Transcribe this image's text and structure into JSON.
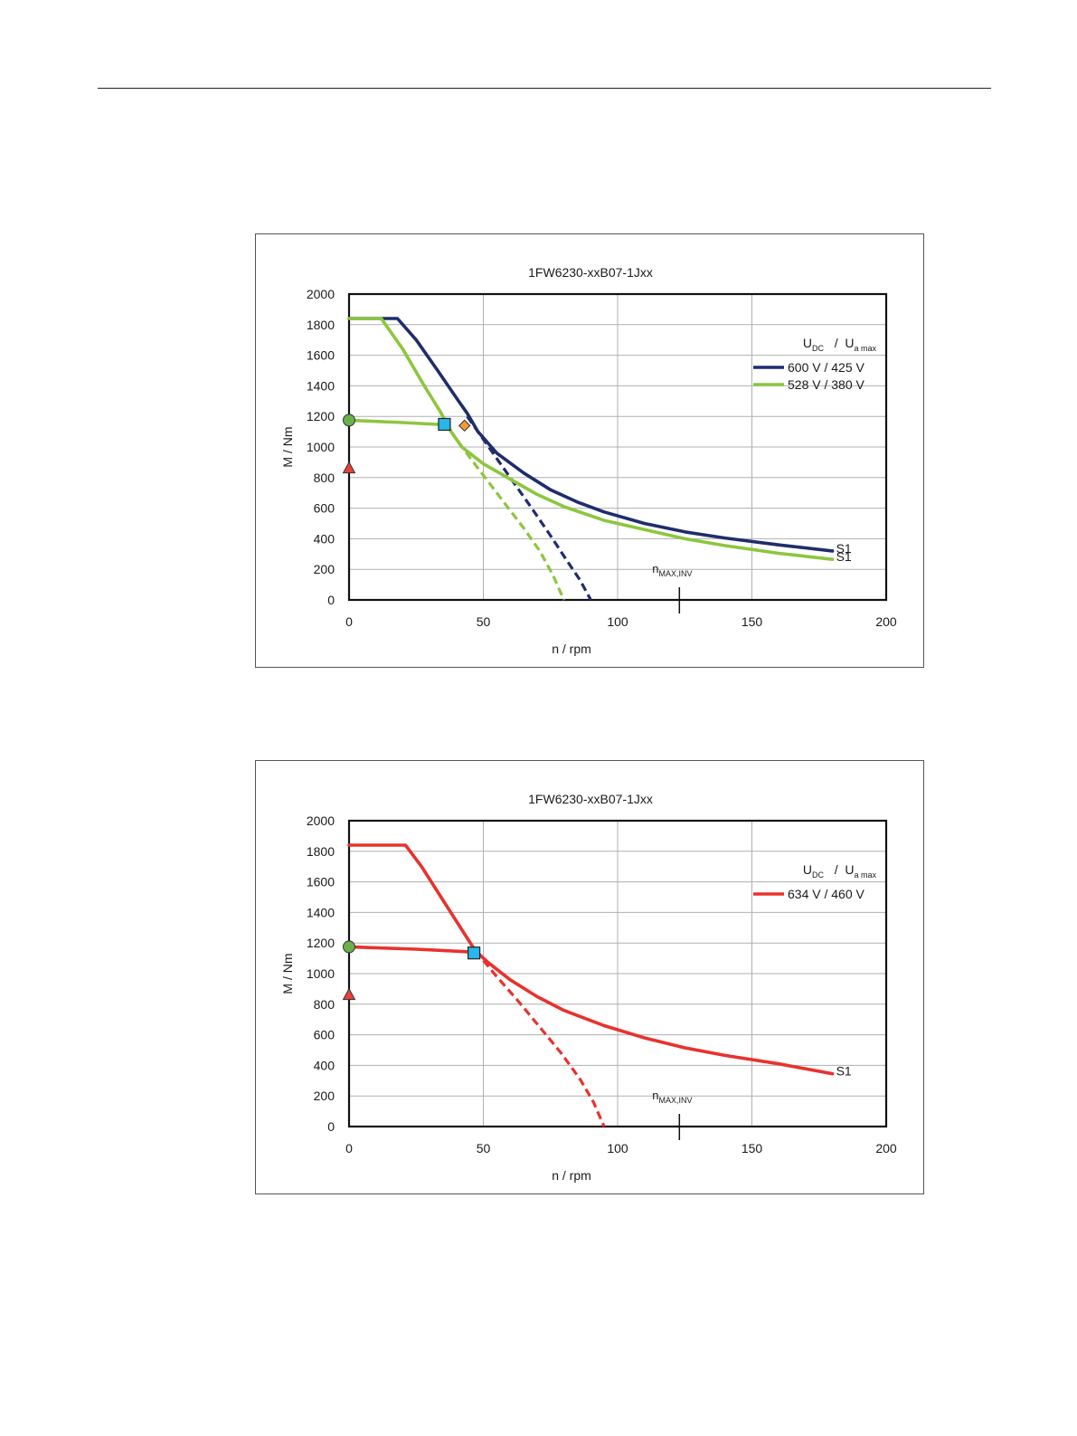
{
  "chart_data": [
    {
      "type": "line",
      "title": "1FW6230-xxB07-1Jxx",
      "xlabel": "n / rpm",
      "ylabel": "M / Nm",
      "xlim": [
        0,
        200
      ],
      "ylim": [
        0,
        2000
      ],
      "x_ticks": [
        0,
        50,
        100,
        150,
        200
      ],
      "y_ticks": [
        0,
        200,
        400,
        600,
        800,
        1000,
        1200,
        1400,
        1600,
        1800,
        2000
      ],
      "grid": true,
      "legend_title": {
        "main": "U",
        "sub1": "DC",
        "sep": " / U",
        "sub2": "a max"
      },
      "legend_position": "top-right",
      "annotation": {
        "text": "n",
        "sub": "MAX,INV",
        "x": 123
      },
      "series": [
        {
          "name": "600 V / 425 V",
          "color": "#1f2d6b",
          "end_label": "S1",
          "solid": [
            [
              0,
              1840
            ],
            [
              18,
              1840
            ],
            [
              25,
              1700
            ],
            [
              33,
              1500
            ],
            [
              40,
              1320
            ],
            [
              44,
              1220
            ],
            [
              48,
              1100
            ],
            [
              55,
              960
            ],
            [
              65,
              830
            ],
            [
              75,
              720
            ],
            [
              85,
              640
            ],
            [
              95,
              575
            ],
            [
              110,
              500
            ],
            [
              125,
              445
            ],
            [
              140,
              405
            ],
            [
              160,
              360
            ],
            [
              180,
              320
            ]
          ],
          "dashed": [
            [
              44,
              1200
            ],
            [
              52,
              1000
            ],
            [
              60,
              800
            ],
            [
              68,
              600
            ],
            [
              75,
              420
            ],
            [
              81,
              260
            ],
            [
              86,
              130
            ],
            [
              90,
              0
            ]
          ]
        },
        {
          "name": "528 V / 380 V",
          "color": "#8cc63f",
          "end_label": "S1",
          "solid": [
            [
              0,
              1840
            ],
            [
              12,
              1840
            ],
            [
              20,
              1640
            ],
            [
              28,
              1400
            ],
            [
              34,
              1230
            ],
            [
              38,
              1100
            ],
            [
              42,
              1000
            ],
            [
              50,
              890
            ],
            [
              60,
              790
            ],
            [
              70,
              690
            ],
            [
              80,
              610
            ],
            [
              95,
              520
            ],
            [
              110,
              460
            ],
            [
              125,
              400
            ],
            [
              140,
              355
            ],
            [
              160,
              305
            ],
            [
              180,
              265
            ]
          ],
          "dashed": [
            [
              38,
              1100
            ],
            [
              45,
              930
            ],
            [
              52,
              770
            ],
            [
              58,
              630
            ],
            [
              65,
              470
            ],
            [
              71,
              320
            ],
            [
              76,
              160
            ],
            [
              80,
              0
            ]
          ]
        },
        {
          "name": "",
          "color": "#8cc63f",
          "end_label": "",
          "solid": [
            [
              0,
              1175
            ],
            [
              20,
              1160
            ],
            [
              36,
              1145
            ]
          ],
          "dashed": []
        }
      ],
      "markers": [
        {
          "shape": "circle",
          "x": 0,
          "y": 1175,
          "color": "#6ab04c"
        },
        {
          "shape": "triangle",
          "x": 0,
          "y": 860,
          "color": "#e8413a"
        },
        {
          "shape": "square",
          "x": 35.5,
          "y": 1148,
          "color": "#29b6e8"
        },
        {
          "shape": "diamond",
          "x": 43,
          "y": 1140,
          "color": "#f39c34"
        }
      ]
    },
    {
      "type": "line",
      "title": "1FW6230-xxB07-1Jxx",
      "xlabel": "n / rpm",
      "ylabel": "M / Nm",
      "xlim": [
        0,
        200
      ],
      "ylim": [
        0,
        2000
      ],
      "x_ticks": [
        0,
        50,
        100,
        150,
        200
      ],
      "y_ticks": [
        0,
        200,
        400,
        600,
        800,
        1000,
        1200,
        1400,
        1600,
        1800,
        2000
      ],
      "grid": true,
      "legend_title": {
        "main": "U",
        "sub1": "DC",
        "sep": " / U",
        "sub2": "a max"
      },
      "legend_position": "top-right",
      "annotation": {
        "text": "n",
        "sub": "MAX,INV",
        "x": 123
      },
      "series": [
        {
          "name": "634 V / 460 V",
          "color": "#e8322d",
          "end_label": "S1",
          "solid": [
            [
              0,
              1840
            ],
            [
              21,
              1840
            ],
            [
              27,
              1700
            ],
            [
              35,
              1480
            ],
            [
              43,
              1260
            ],
            [
              47,
              1150
            ],
            [
              52,
              1070
            ],
            [
              60,
              960
            ],
            [
              70,
              850
            ],
            [
              80,
              760
            ],
            [
              95,
              660
            ],
            [
              110,
              580
            ],
            [
              125,
              515
            ],
            [
              140,
              465
            ],
            [
              160,
              410
            ],
            [
              180,
              345
            ]
          ],
          "dashed": [
            [
              47,
              1150
            ],
            [
              55,
              980
            ],
            [
              63,
              820
            ],
            [
              71,
              650
            ],
            [
              79,
              480
            ],
            [
              86,
              310
            ],
            [
              91,
              160
            ],
            [
              95,
              0
            ]
          ]
        },
        {
          "name": "",
          "color": "#e8322d",
          "end_label": "",
          "solid": [
            [
              0,
              1175
            ],
            [
              25,
              1160
            ],
            [
              47,
              1140
            ]
          ],
          "dashed": []
        }
      ],
      "markers": [
        {
          "shape": "circle",
          "x": 0,
          "y": 1175,
          "color": "#6ab04c"
        },
        {
          "shape": "triangle",
          "x": 0,
          "y": 860,
          "color": "#e8413a"
        },
        {
          "shape": "square",
          "x": 46.5,
          "y": 1135,
          "color": "#29b6e8"
        }
      ]
    }
  ]
}
